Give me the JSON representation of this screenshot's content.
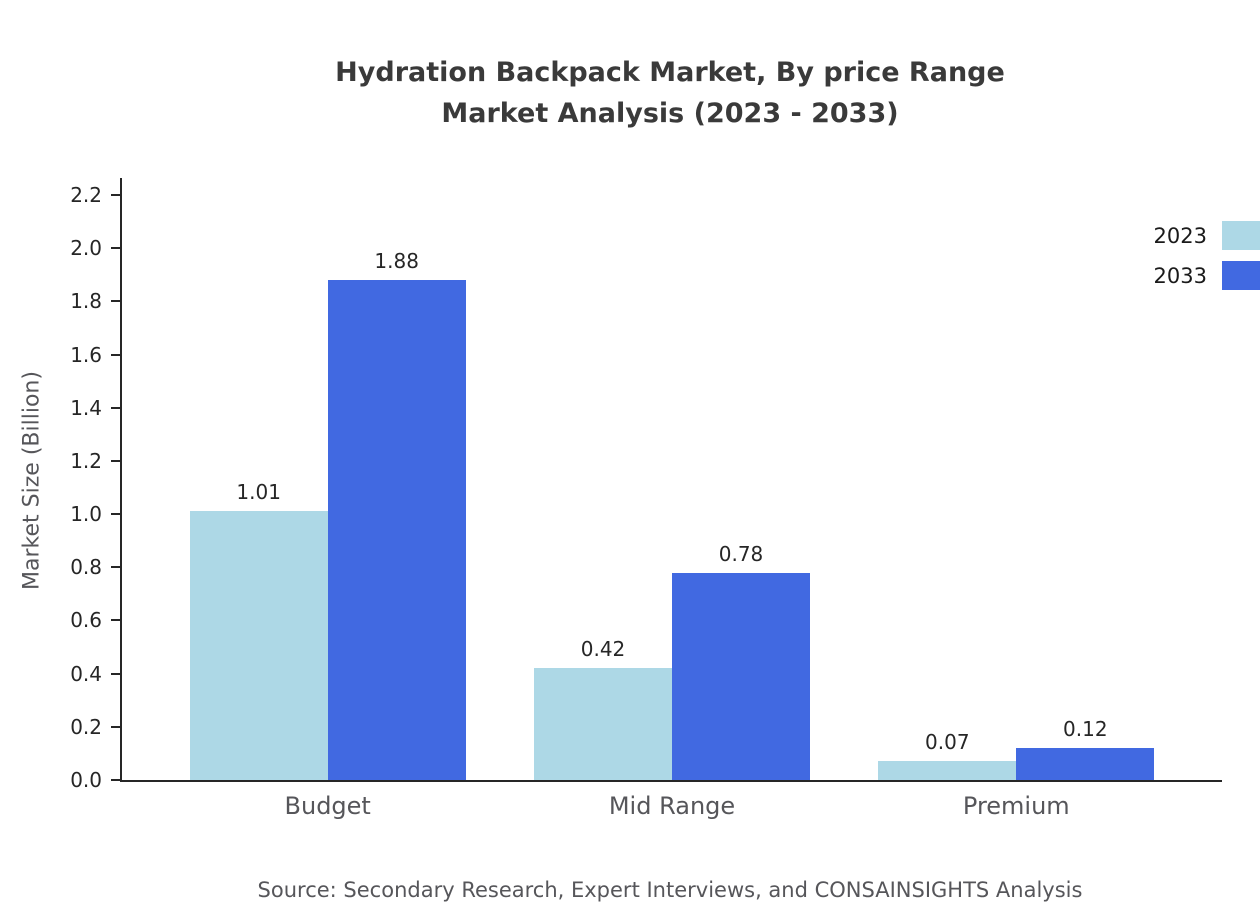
{
  "title": {
    "line1": "Hydration Backpack Market, By price Range",
    "line2": "Market Analysis (2023 - 2033)"
  },
  "source": "Source: Secondary Research, Expert Interviews, and CONSAINSIGHTS Analysis",
  "chart_data": {
    "type": "bar",
    "categories": [
      "Budget",
      "Mid Range",
      "Premium"
    ],
    "series": [
      {
        "name": "2023",
        "color": "#ADD8E6",
        "values": [
          1.01,
          0.42,
          0.07
        ]
      },
      {
        "name": "2033",
        "color": "#4169E1",
        "values": [
          1.88,
          0.78,
          0.12
        ]
      }
    ],
    "title": "Hydration Backpack Market, By price Range Market Analysis (2023 - 2033)",
    "xlabel": "",
    "ylabel": "Market Size (Billion)",
    "ylim": [
      0,
      2.2
    ],
    "ytick_step": 0.2,
    "grid": false,
    "legend_position": "top-right",
    "value_labels": true
  }
}
